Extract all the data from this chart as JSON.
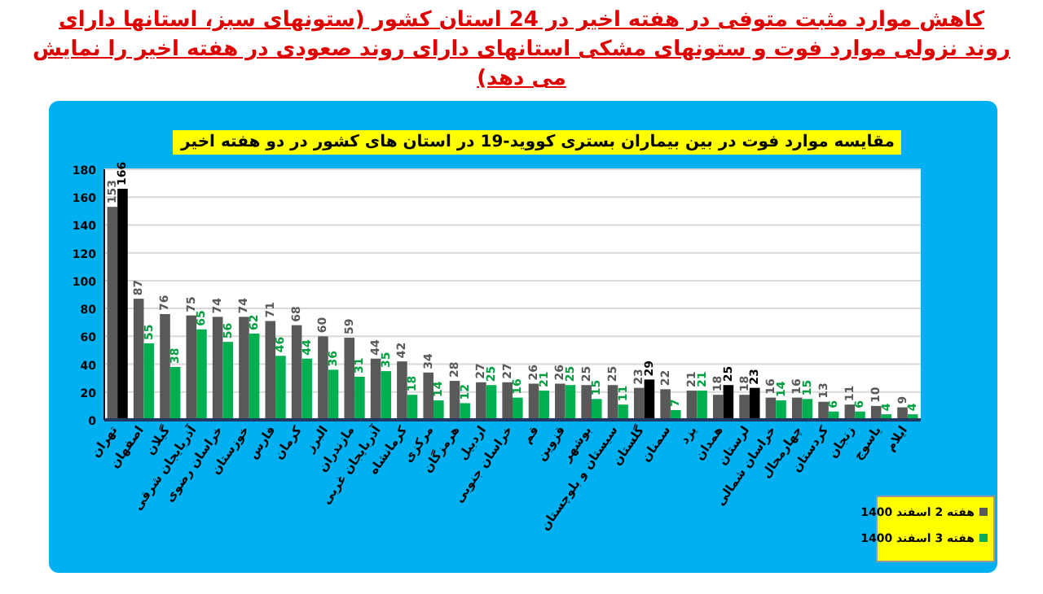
{
  "chart_data": {
    "type": "bar",
    "title": "کاهش موارد مثبت متوفی در هفته اخیر در 24 استان کشور (ستونهای سبز، استانها دارای روند نزولی موارد فوت و ستونهای مشکی استانهای دارای روند صعودی در هفته اخیر را نمایش می دهد)",
    "subtitle": "مقایسه موارد فوت در بین بیماران بستری کووید-19 در استان های کشور در دو هفته اخیر",
    "categories": [
      "تهران",
      "اصفهان",
      "گیلان",
      "آذربایجان شرقی",
      "خراسان رضوی",
      "خوزستان",
      "فارس",
      "کرمان",
      "البرز",
      "مازندران",
      "آذربایجان غربی",
      "کرمانشاه",
      "مرکزی",
      "هرمزگان",
      "اردبیل",
      "خراسان جنوبی",
      "قم",
      "قزوین",
      "بوشهر",
      "سیستان و بلوچستان",
      "گلستان",
      "سمنان",
      "یزد",
      "همدان",
      "لرستان",
      "خراسان شمالی",
      "چهارمحال",
      "کردستان",
      "زنجان",
      "یاسوج",
      "ایلام"
    ],
    "series": [
      {
        "name": "هفته 2 اسفند 1400",
        "color": "#595959",
        "values": [
          153,
          87,
          76,
          75,
          74,
          74,
          71,
          68,
          60,
          59,
          44,
          42,
          34,
          28,
          27,
          27,
          26,
          26,
          25,
          25,
          23,
          22,
          21,
          18,
          18,
          16,
          16,
          13,
          11,
          10,
          9
        ]
      },
      {
        "name": "هفته 3 اسفند 1400",
        "color": "#00b050",
        "colors": [
          "#000000",
          "#00b050",
          "#00b050",
          "#00b050",
          "#00b050",
          "#00b050",
          "#00b050",
          "#00b050",
          "#00b050",
          "#00b050",
          "#00b050",
          "#00b050",
          "#00b050",
          "#00b050",
          "#00b050",
          "#00b050",
          "#00b050",
          "#00b050",
          "#00b050",
          "#00b050",
          "#000000",
          "#00b050",
          "#00b050",
          "#000000",
          "#000000",
          "#00b050",
          "#00b050",
          "#00b050",
          "#00b050",
          "#00b050",
          "#00b050"
        ],
        "values": [
          166,
          55,
          38,
          65,
          56,
          62,
          46,
          44,
          36,
          31,
          35,
          18,
          14,
          12,
          25,
          16,
          21,
          25,
          15,
          11,
          29,
          7,
          21,
          25,
          23,
          14,
          15,
          6,
          6,
          4,
          4
        ]
      }
    ],
    "ylim": [
      0,
      180
    ],
    "yticks": [
      0,
      20,
      40,
      60,
      80,
      100,
      120,
      140,
      160,
      180
    ],
    "grid": "y",
    "legend": "bottom right",
    "data_labels": true
  }
}
